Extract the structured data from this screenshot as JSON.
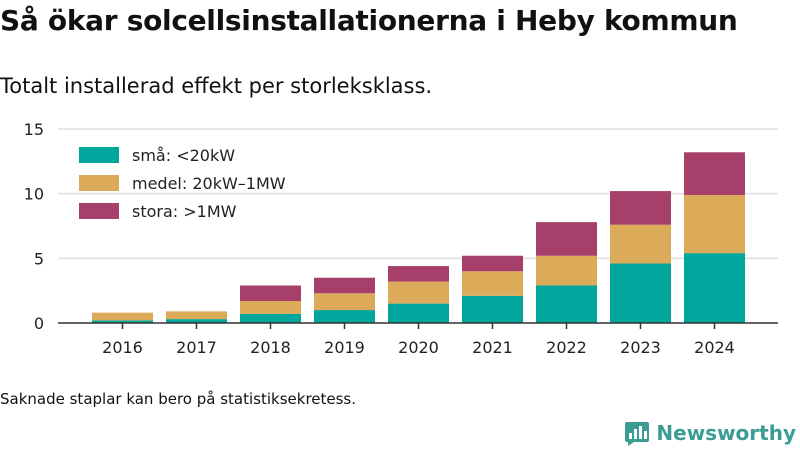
{
  "title": "Så ökar solcellsinstallationerna i Heby kommun",
  "subtitle": "Totalt installerad effekt per storleksklass.",
  "footnote": "Saknade staplar kan bero på statistiksekretess.",
  "brand": {
    "name": "Newsworthy",
    "icon": "newsworthy-logo-icon",
    "color": "#3b9c93"
  },
  "chart_data": {
    "type": "bar",
    "stacked": true,
    "categories": [
      "2016",
      "2017",
      "2018",
      "2019",
      "2020",
      "2021",
      "2022",
      "2023",
      "2024"
    ],
    "series": [
      {
        "name": "små: <20kW",
        "color": "#00a59b",
        "values": [
          0.2,
          0.3,
          0.7,
          1.0,
          1.5,
          2.1,
          2.9,
          4.6,
          5.4
        ]
      },
      {
        "name": "medel: 20kW–1MW",
        "color": "#dbab5a",
        "values": [
          0.6,
          0.6,
          1.0,
          1.3,
          1.7,
          1.9,
          2.3,
          3.0,
          4.5
        ]
      },
      {
        "name": "stora: >1MW",
        "color": "#a63f69",
        "values": [
          0.0,
          0.0,
          1.2,
          1.2,
          1.2,
          1.2,
          2.6,
          2.6,
          3.3
        ]
      }
    ],
    "ylim": [
      0,
      15
    ],
    "yticks": [
      "0",
      "5",
      "10",
      "15"
    ],
    "grid": true,
    "legend": "top-left"
  }
}
